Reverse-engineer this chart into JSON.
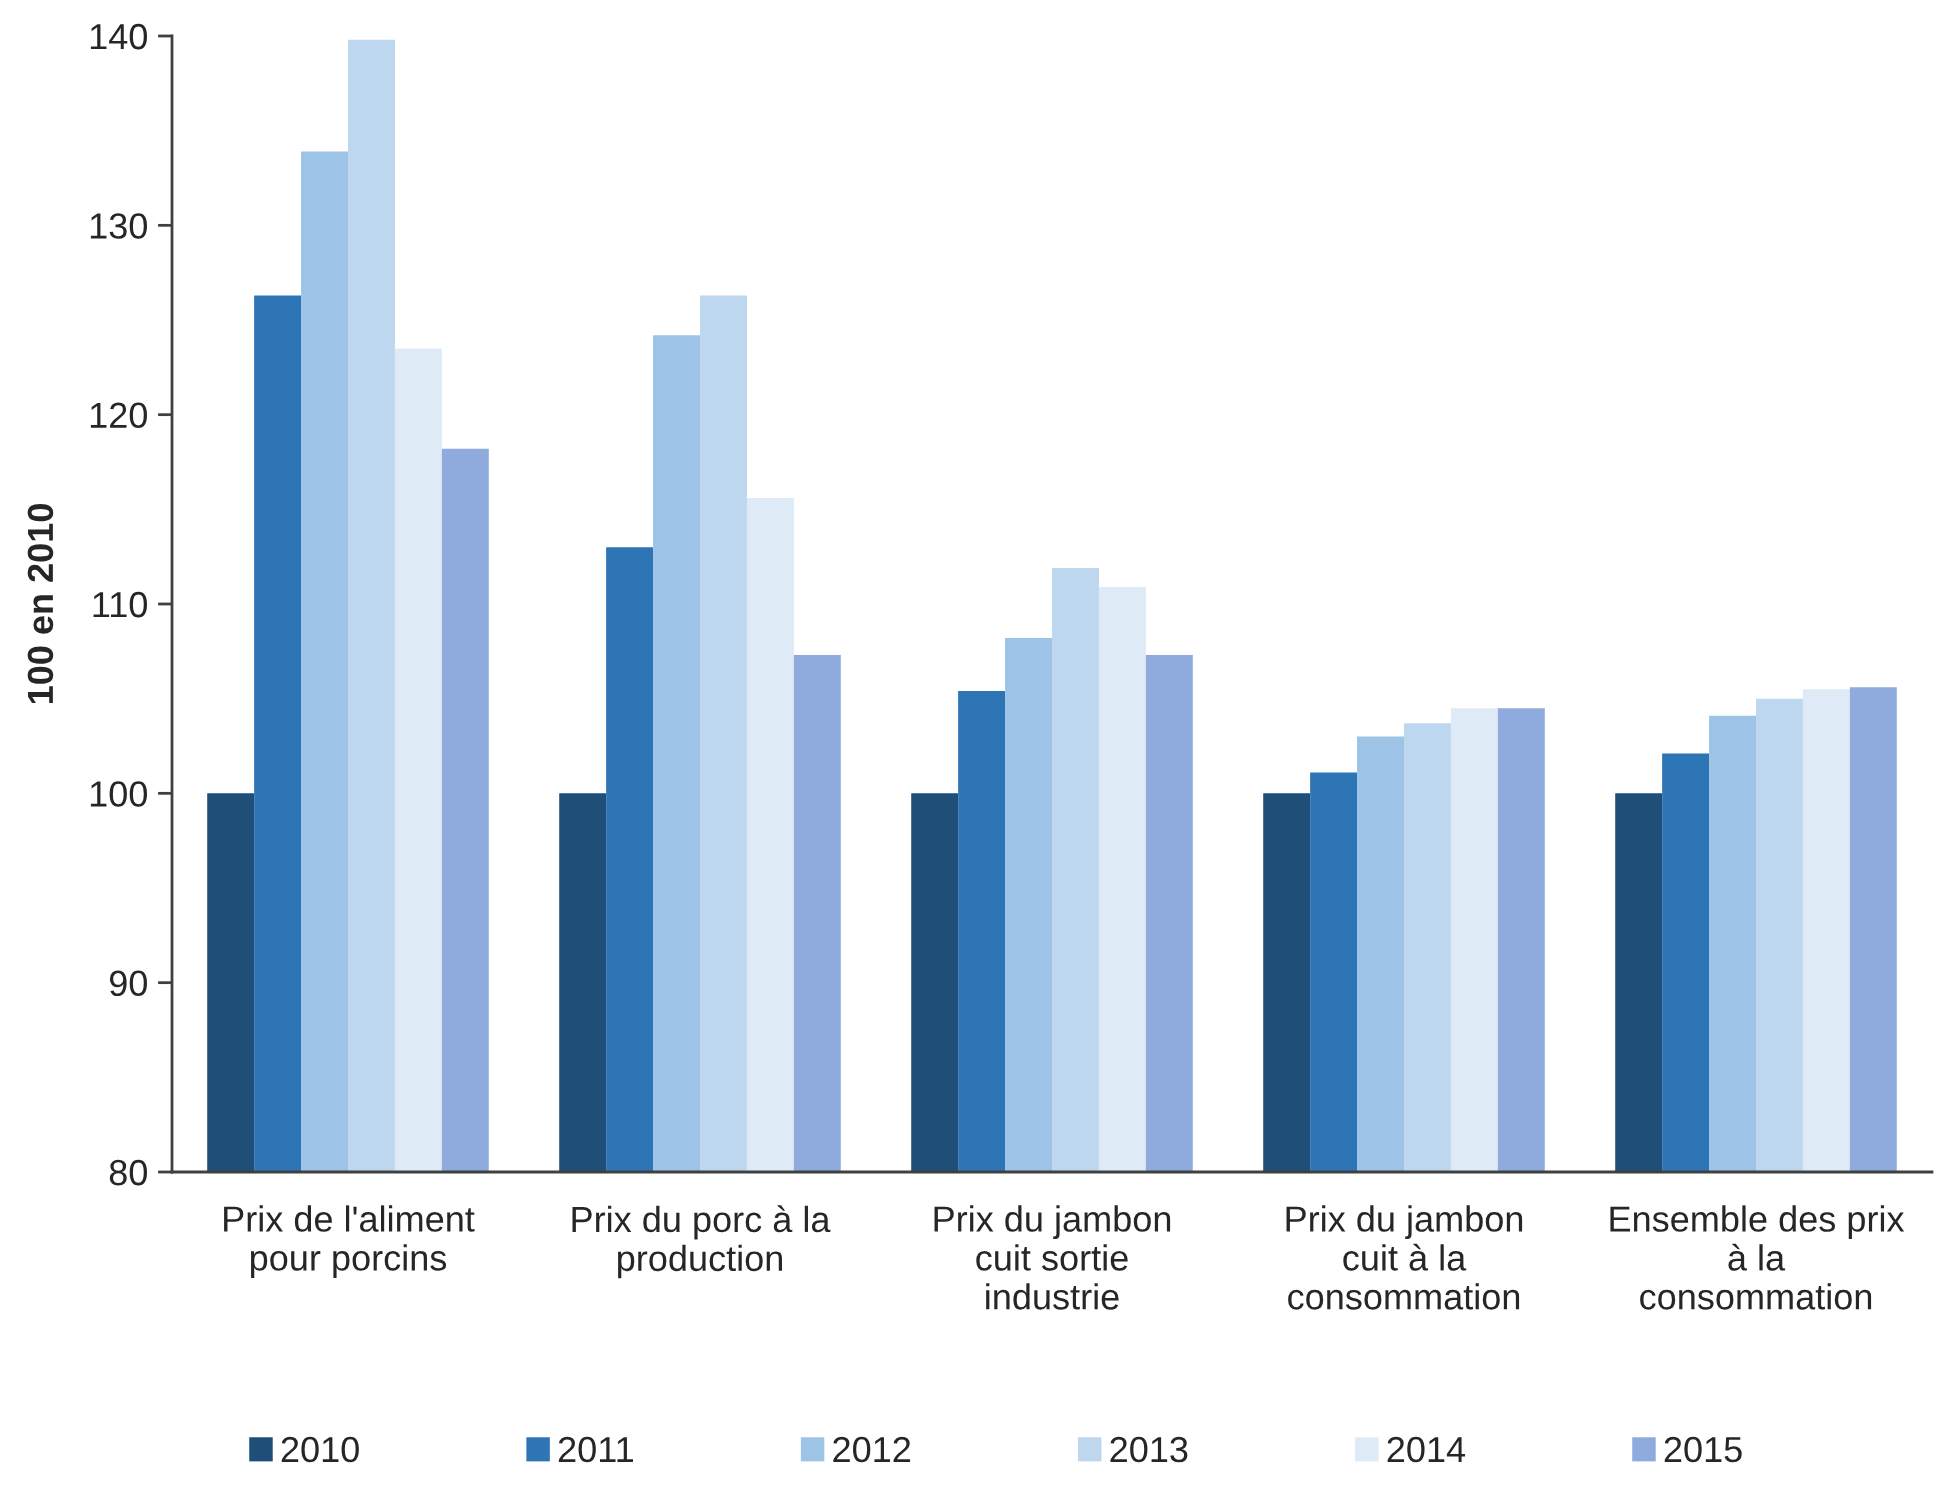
{
  "chart_data": {
    "type": "bar",
    "ylabel": "100 en 2010",
    "categories": [
      "Prix de l'aliment\npour porcins",
      "Prix du porc à la\nproduction",
      "Prix du jambon\ncuit sortie\nindustrie",
      "Prix du jambon\ncuit à la\nconsommation",
      "Ensemble des prix\nà la\nconsommation"
    ],
    "series": [
      {
        "name": "2010",
        "color": "#1f4e79",
        "values": [
          100,
          100,
          100,
          100,
          100
        ]
      },
      {
        "name": "2011",
        "color": "#2e75b6",
        "values": [
          126.3,
          113.0,
          105.4,
          101.1,
          102.1
        ]
      },
      {
        "name": "2012",
        "color": "#9dc3e6",
        "values": [
          133.9,
          124.2,
          108.2,
          103.0,
          104.1
        ]
      },
      {
        "name": "2013",
        "color": "#bdd7ee",
        "values": [
          139.8,
          126.3,
          111.9,
          103.7,
          105.0
        ]
      },
      {
        "name": "2014",
        "color": "#deebf7",
        "values": [
          123.5,
          115.6,
          110.9,
          104.5,
          105.5
        ]
      },
      {
        "name": "2015",
        "color": "#8faadc",
        "values": [
          118.2,
          107.3,
          107.3,
          104.5,
          105.6
        ]
      }
    ],
    "ylim": [
      80,
      140
    ],
    "yticks": [
      80,
      90,
      100,
      110,
      120,
      130,
      140
    ],
    "legend": "bottom"
  }
}
